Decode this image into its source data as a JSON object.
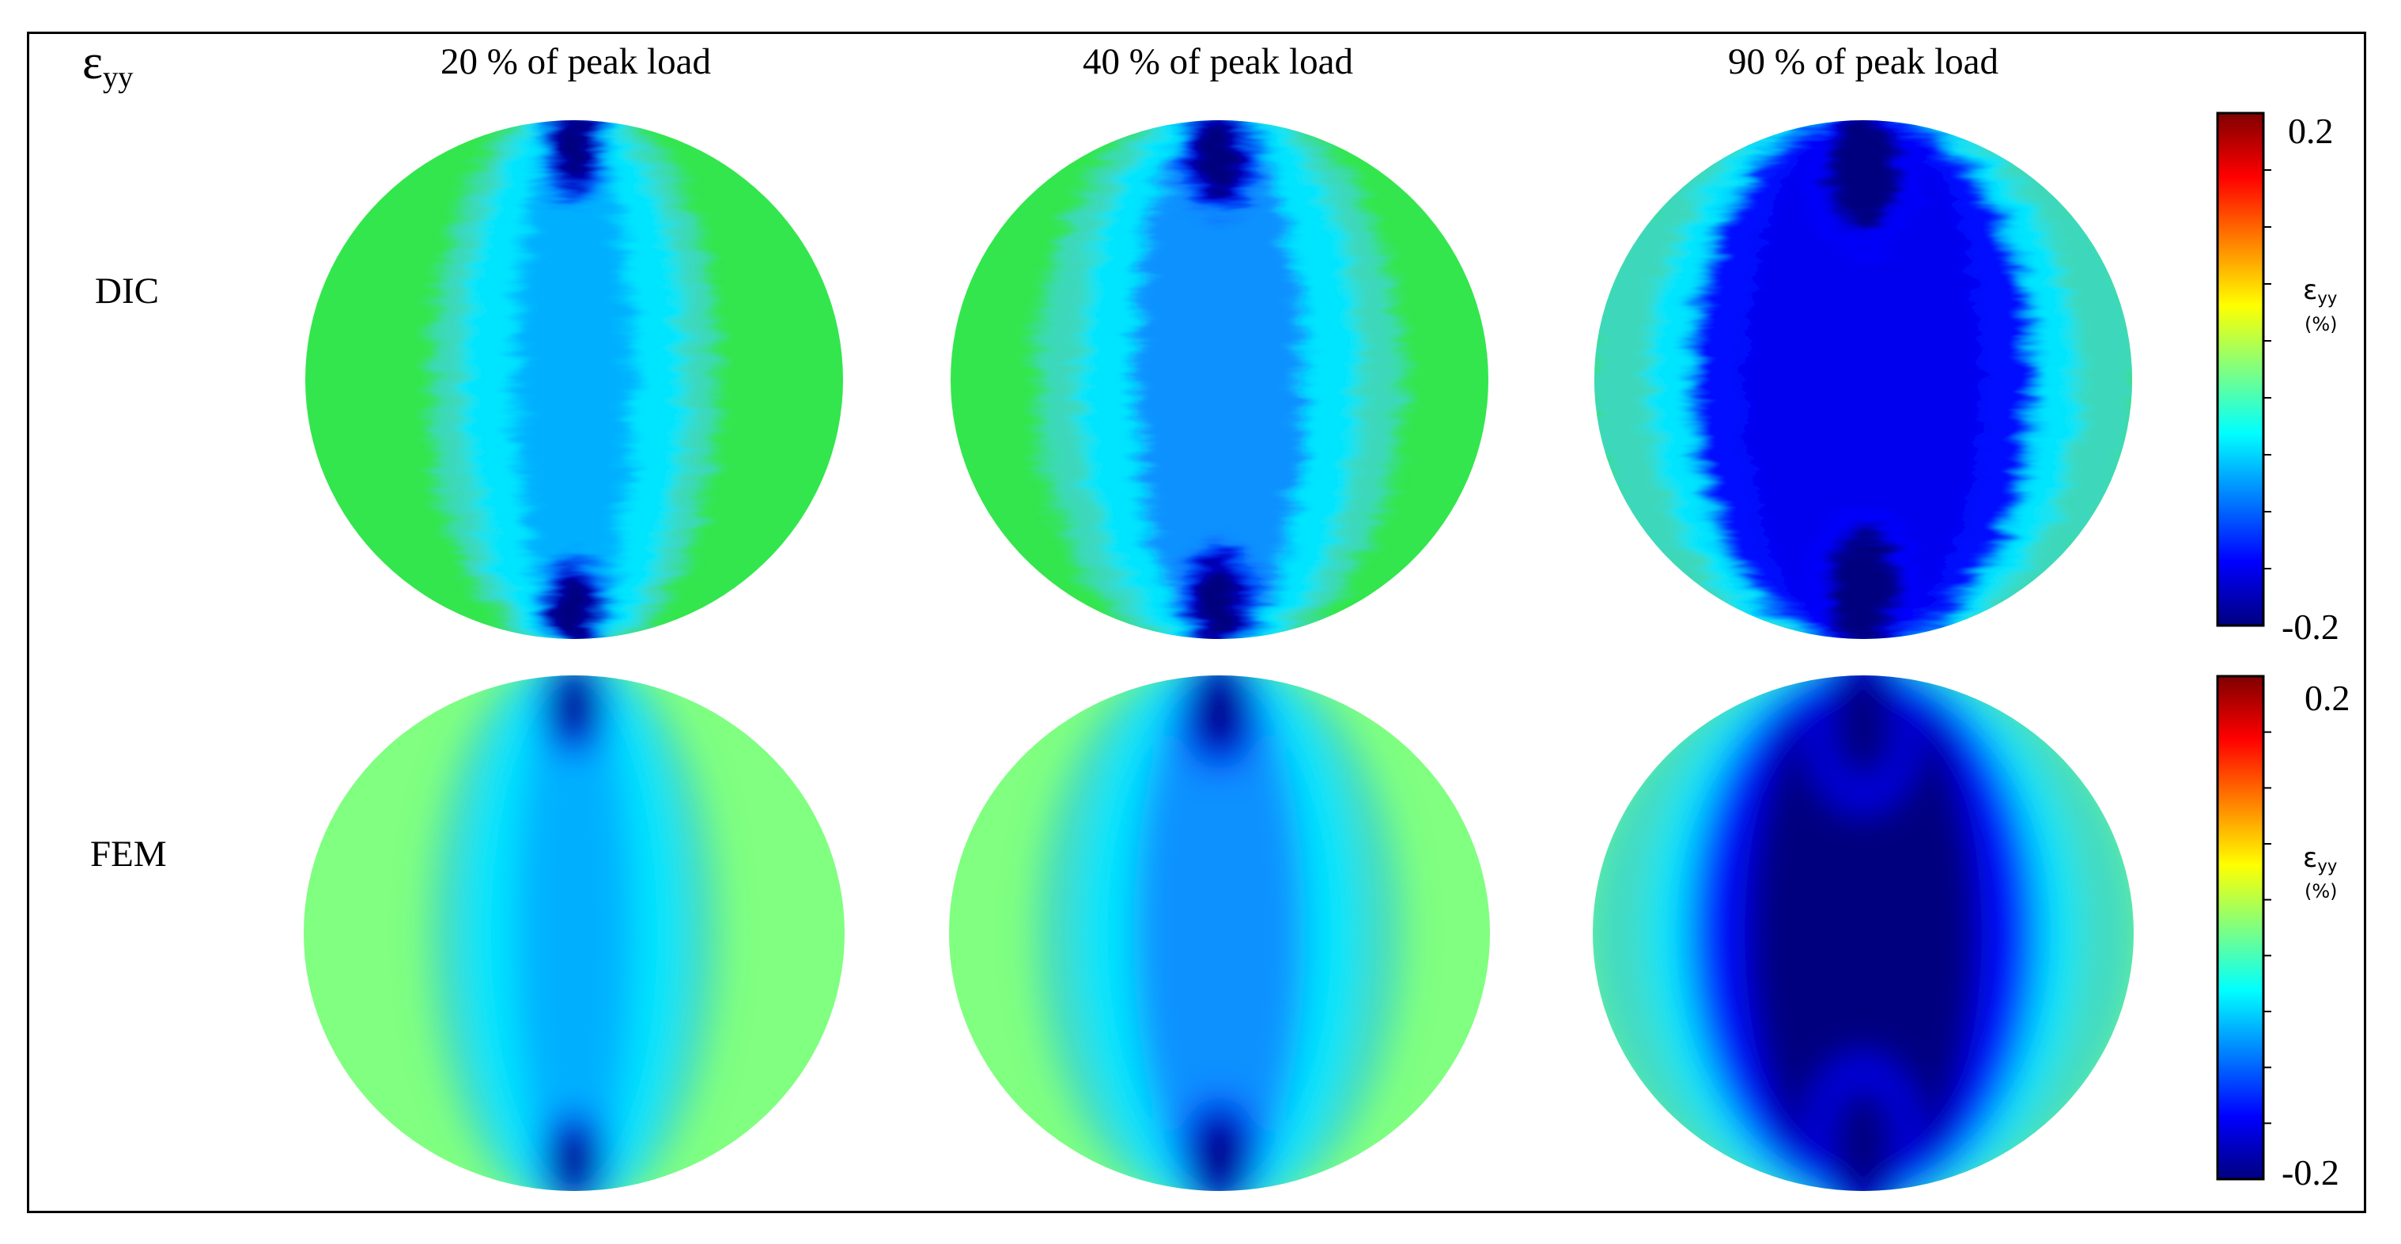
{
  "figure": {
    "corner_label": {
      "symbol": "ε",
      "subscript": "yy"
    },
    "columns": [
      {
        "label": "20 % of peak load",
        "level": 0.2
      },
      {
        "label": "40 % of peak load",
        "level": 0.4
      },
      {
        "label": "90 % of peak load",
        "level": 0.9
      }
    ],
    "rows": [
      {
        "label": "DIC",
        "kind": "measured"
      },
      {
        "label": "FEM",
        "kind": "simulated"
      }
    ],
    "colorbars": [
      {
        "max_label": "0.2",
        "min_label": "-0.2",
        "quantity_symbol": "ε",
        "quantity_subscript": "yy",
        "unit": "(%)"
      },
      {
        "max_label": "0.2",
        "min_label": "-0.2",
        "quantity_symbol": "ε",
        "quantity_subscript": "yy",
        "unit": "(%)"
      }
    ],
    "colormap": [
      "#00007f",
      "#0000ff",
      "#0080ff",
      "#00ffff",
      "#80ff80",
      "#ffff00",
      "#ff8000",
      "#ff0000",
      "#7f0000"
    ]
  }
}
